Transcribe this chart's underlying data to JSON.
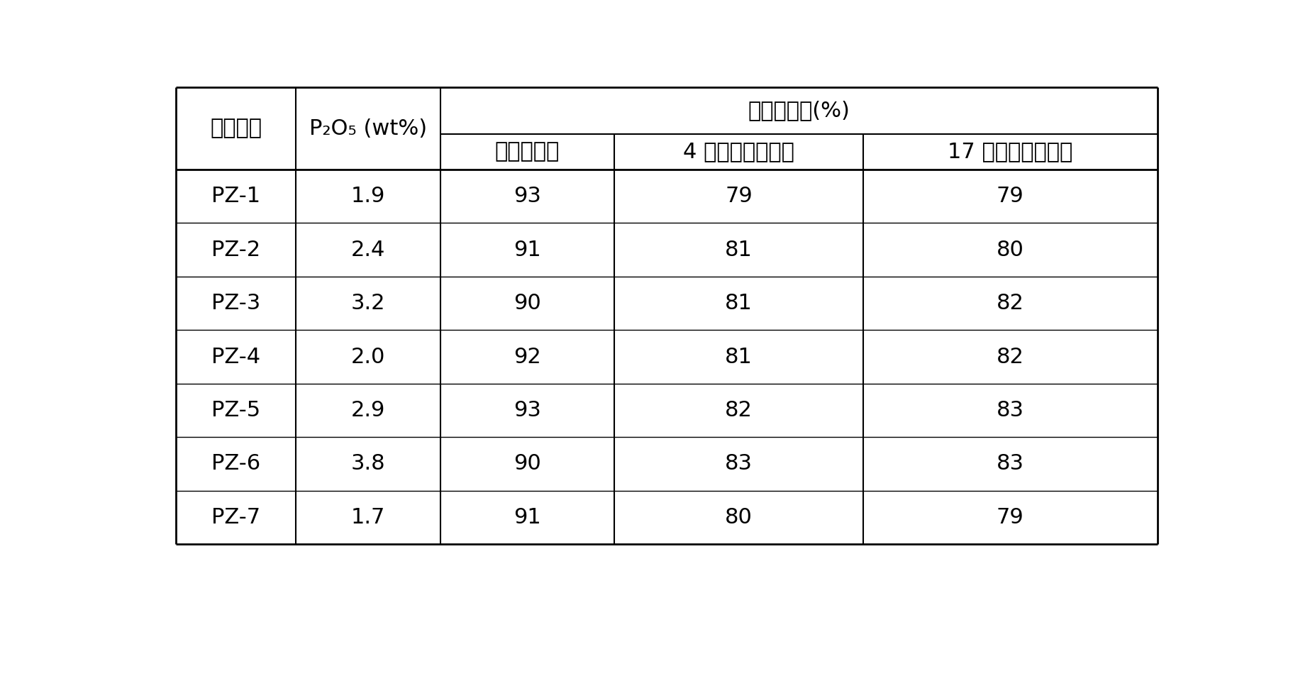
{
  "col0_header": "样品编号",
  "col1_header_line1": "P",
  "col1_header": "P₂O₅ (wt%)",
  "merged_header": "相对结晶度(%)",
  "col2_header": "水热处理前",
  "col3_header": "4 小时水热处理后",
  "col4_header": "17 小时水热处理后",
  "rows": [
    [
      "PZ-1",
      "1.9",
      "93",
      "79",
      "79"
    ],
    [
      "PZ-2",
      "2.4",
      "91",
      "81",
      "80"
    ],
    [
      "PZ-3",
      "3.2",
      "90",
      "81",
      "82"
    ],
    [
      "PZ-4",
      "2.0",
      "92",
      "81",
      "82"
    ],
    [
      "PZ-5",
      "2.9",
      "93",
      "82",
      "83"
    ],
    [
      "PZ-6",
      "3.8",
      "90",
      "83",
      "83"
    ],
    [
      "PZ-7",
      "1.7",
      "91",
      "80",
      "79"
    ]
  ],
  "bg_color": "#ffffff",
  "text_color": "#000000",
  "line_color": "#000000",
  "font_size": 22,
  "p2o5_label": "P₂O₅ (wt%)"
}
